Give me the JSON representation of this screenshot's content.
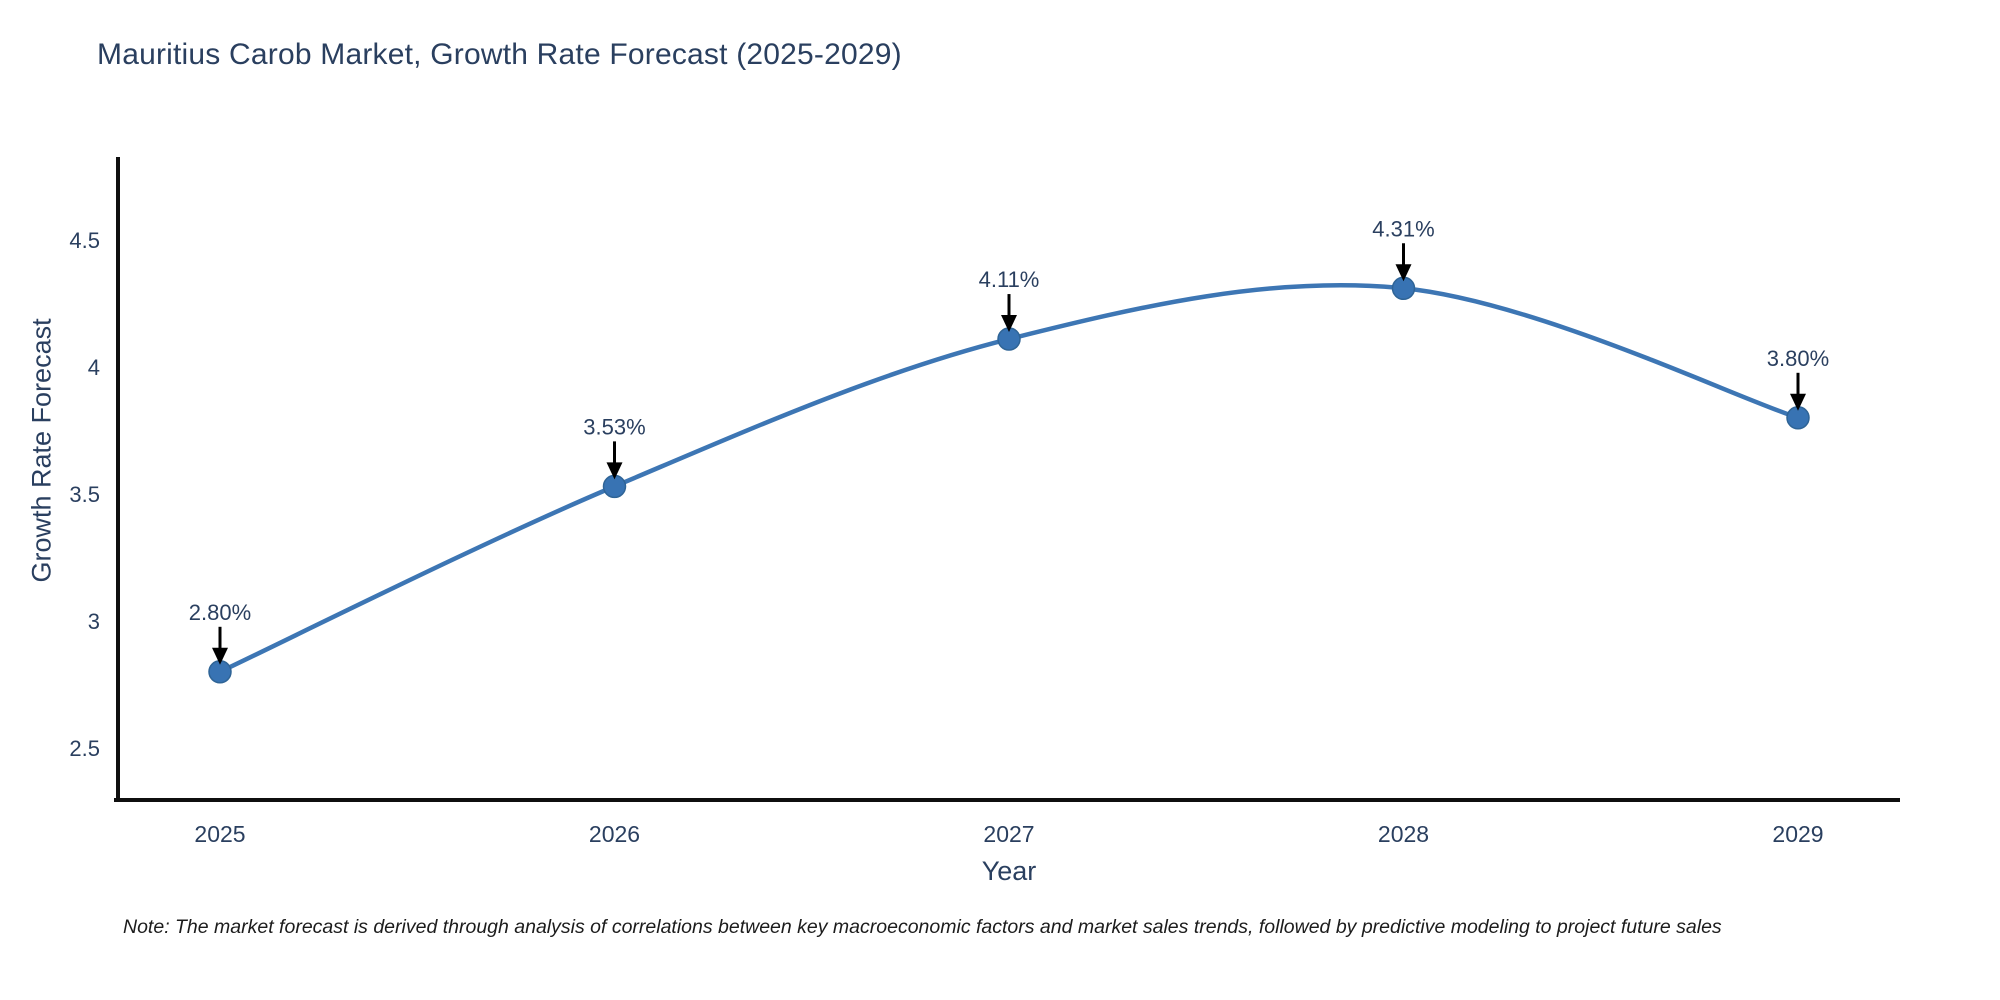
{
  "chart_data": {
    "type": "line",
    "title": "Mauritius Carob Market, Growth Rate Forecast (2025-2029)",
    "xlabel": "Year",
    "ylabel": "Growth Rate Forecast",
    "x": [
      2025,
      2026,
      2027,
      2028,
      2029
    ],
    "series": [
      {
        "name": "Growth Rate Forecast",
        "values": [
          2.8,
          3.53,
          4.11,
          4.31,
          3.8
        ]
      }
    ],
    "point_labels": [
      "2.80%",
      "3.53%",
      "4.11%",
      "4.31%",
      "3.80%"
    ],
    "yticks": [
      2.5,
      3,
      3.5,
      4,
      4.5
    ],
    "ytick_labels": [
      "2.5",
      "3",
      "3.5",
      "4",
      "4.5"
    ],
    "xtick_labels": [
      "2025",
      "2026",
      "2027",
      "2028",
      "2029"
    ],
    "ylim": [
      2.3,
      4.82
    ],
    "line_shape": "spline",
    "grid": false,
    "legend": "none",
    "colors": {
      "line": "#3d76b4",
      "marker": "#3873b3",
      "marker_edge": "#2f6496",
      "axis": "#0f0f0f",
      "tick_text": "#2a3f5f",
      "annotation_text": "#2a3f5f",
      "annotation_arrow": "#000000"
    }
  },
  "note": "Note: The market forecast is derived through analysis of correlations between key macroeconomic factors and market sales trends, followed by predictive modeling to project future sales"
}
